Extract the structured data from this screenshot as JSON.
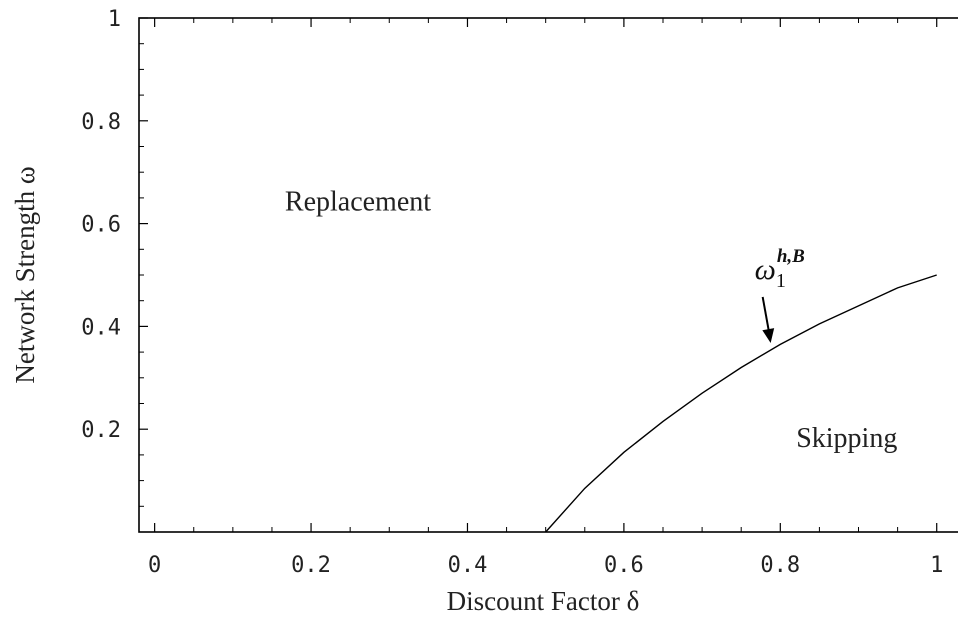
{
  "chart_data": {
    "type": "line",
    "xlabel": "Discount Factor δ",
    "ylabel": "Network Strength ω",
    "xlim": [
      -0.02,
      1.04
    ],
    "ylim": [
      0,
      1
    ],
    "x_ticks": [
      0,
      0.2,
      0.4,
      0.6,
      0.8,
      1
    ],
    "x_tick_labels": [
      "0",
      "0.2",
      "0.4",
      "0.6",
      "0.8",
      "1"
    ],
    "y_ticks": [
      0.2,
      0.4,
      0.6,
      0.8,
      1
    ],
    "y_tick_labels": [
      "0.2",
      "0.4",
      "0.6",
      "0.8",
      "1"
    ],
    "grid": false,
    "series": [
      {
        "x": [
          0.5,
          0.55,
          0.6,
          0.65,
          0.7,
          0.75,
          0.8,
          0.85,
          0.9,
          0.95,
          1.0
        ],
        "y": [
          0.0,
          0.085,
          0.155,
          0.215,
          0.27,
          0.32,
          0.365,
          0.405,
          0.44,
          0.475,
          0.5
        ]
      }
    ],
    "annotations": {
      "curve_label": {
        "main": "ω",
        "sub": "1",
        "sup": "h,B",
        "x": 0.78,
        "y": 0.36
      },
      "regions": [
        {
          "text": "Replacement",
          "x": 0.26,
          "y": 0.645
        },
        {
          "text": "Skipping",
          "x": 0.885,
          "y": 0.185
        }
      ]
    }
  }
}
